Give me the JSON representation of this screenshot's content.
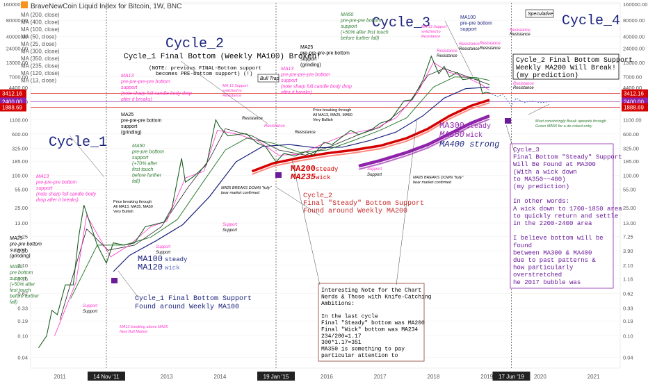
{
  "header": {
    "title": "BraveNewCoin Liquid Index for Bitcoin, 1W, BNC",
    "ma_list": [
      "MA (200, close)",
      "MA (400, close)",
      "MA (100, close)",
      "MA (50, close)",
      "MA (25, close)",
      "MA (300, close)",
      "MA (350, close)",
      "MA (235, close)",
      "MA (120, close)",
      "MA (13, close)"
    ]
  },
  "colors": {
    "ma13": "#ff33cc",
    "ma25": "#222222",
    "ma50": "#2e7d32",
    "ma100": "#1a237e",
    "ma200": "#d50000",
    "ma300": "#8e24aa",
    "price": "#1b5e20",
    "cycle_text": "#1a237e",
    "prediction_box": "#8e24aa",
    "note_box": "#8d3b2f"
  },
  "chart_data": {
    "type": "line",
    "title": "",
    "yscale": "log",
    "ylim": [
      0.025,
      170000
    ],
    "x_ticks": [
      "2011",
      "14 Nov '11",
      "2013",
      "2014",
      "19 Jan '15",
      "2016",
      "2017",
      "2018",
      "2019",
      "17 Jun '19",
      "2020",
      "2021"
    ],
    "y_ticks": [
      "160000.00",
      "80000.00",
      "40000.00",
      "24000.00",
      "13000.00",
      "7000.00",
      "4400.00",
      "2400.00",
      "1100.00",
      "600.00",
      "325.00",
      "185.00",
      "100.00",
      "55.00",
      "25.00",
      "13.00",
      "7.25",
      "3.90",
      "2.10",
      "1.16",
      "0.62",
      "0.33",
      "0.19",
      "0.10",
      "0.04"
    ],
    "price_badges": [
      {
        "value": "3412.16",
        "color": "#d50000"
      },
      {
        "value": "2400.00",
        "color": "#8e24aa"
      },
      {
        "value": "1888.69",
        "color": "#d50000"
      }
    ],
    "series_price": [
      [
        2010.6,
        0.06
      ],
      [
        2010.75,
        0.1
      ],
      [
        2010.85,
        0.3
      ],
      [
        2010.95,
        0.25
      ],
      [
        2011.1,
        0.9
      ],
      [
        2011.25,
        0.9
      ],
      [
        2011.35,
        7
      ],
      [
        2011.45,
        28
      ],
      [
        2011.55,
        14
      ],
      [
        2011.7,
        5
      ],
      [
        2011.87,
        2.3
      ],
      [
        2012.0,
        5.5
      ],
      [
        2012.2,
        5
      ],
      [
        2012.4,
        5.5
      ],
      [
        2012.6,
        11
      ],
      [
        2012.75,
        12
      ],
      [
        2012.95,
        13.5
      ],
      [
        2013.1,
        25
      ],
      [
        2013.28,
        210
      ],
      [
        2013.35,
        75
      ],
      [
        2013.5,
        95
      ],
      [
        2013.75,
        160
      ],
      [
        2013.92,
        1100
      ],
      [
        2014.0,
        800
      ],
      [
        2014.15,
        550
      ],
      [
        2014.4,
        600
      ],
      [
        2014.5,
        600
      ],
      [
        2014.7,
        400
      ],
      [
        2014.85,
        350
      ],
      [
        2015.05,
        180
      ],
      [
        2015.2,
        260
      ],
      [
        2015.4,
        230
      ],
      [
        2015.6,
        280
      ],
      [
        2015.75,
        240
      ],
      [
        2015.95,
        420
      ],
      [
        2016.1,
        380
      ],
      [
        2016.45,
        700
      ],
      [
        2016.6,
        580
      ],
      [
        2016.85,
        730
      ],
      [
        2017.0,
        950
      ],
      [
        2017.2,
        1100
      ],
      [
        2017.45,
        2500
      ],
      [
        2017.6,
        2600
      ],
      [
        2017.8,
        6000
      ],
      [
        2017.96,
        17000
      ],
      [
        2018.1,
        8000
      ],
      [
        2018.2,
        11000
      ],
      [
        2018.3,
        7000
      ],
      [
        2018.45,
        8500
      ],
      [
        2018.55,
        6200
      ],
      [
        2018.7,
        6500
      ],
      [
        2018.85,
        6300
      ],
      [
        2018.92,
        3400
      ],
      [
        2018.98,
        3600
      ],
      [
        2019.05,
        3500
      ]
    ],
    "series_prediction": [
      [
        2019.05,
        3500
      ],
      [
        2019.2,
        3000
      ],
      [
        2019.3,
        3300
      ],
      [
        2019.38,
        2600
      ],
      [
        2019.46,
        2000
      ],
      [
        2019.55,
        2800
      ],
      [
        2019.7,
        2300
      ],
      [
        2019.85,
        2500
      ],
      [
        2020.0,
        2300
      ],
      [
        2020.2,
        2400
      ]
    ],
    "series_ma13": [
      [
        2010.9,
        0.1
      ],
      [
        2011.3,
        1
      ],
      [
        2011.5,
        18
      ],
      [
        2011.7,
        8
      ],
      [
        2011.95,
        3
      ],
      [
        2012.3,
        5
      ],
      [
        2012.7,
        11
      ],
      [
        2013.0,
        14
      ],
      [
        2013.35,
        90
      ],
      [
        2013.7,
        120
      ],
      [
        2013.95,
        700
      ],
      [
        2014.3,
        600
      ],
      [
        2014.7,
        450
      ],
      [
        2015.1,
        240
      ],
      [
        2015.5,
        250
      ],
      [
        2015.9,
        380
      ],
      [
        2016.4,
        600
      ],
      [
        2016.9,
        750
      ],
      [
        2017.3,
        1200
      ],
      [
        2017.7,
        3500
      ],
      [
        2018.0,
        13000
      ],
      [
        2018.3,
        8500
      ],
      [
        2018.6,
        7000
      ],
      [
        2018.9,
        5000
      ],
      [
        2019.05,
        3900
      ]
    ],
    "series_ma25": [
      [
        2011.0,
        0.2
      ],
      [
        2011.5,
        10
      ],
      [
        2011.9,
        4
      ],
      [
        2012.4,
        5
      ],
      [
        2012.9,
        11
      ],
      [
        2013.4,
        60
      ],
      [
        2013.8,
        200
      ],
      [
        2014.1,
        750
      ],
      [
        2014.6,
        550
      ],
      [
        2015.1,
        300
      ],
      [
        2015.6,
        240
      ],
      [
        2016.1,
        360
      ],
      [
        2016.6,
        580
      ],
      [
        2017.0,
        800
      ],
      [
        2017.5,
        2000
      ],
      [
        2017.9,
        7500
      ],
      [
        2018.2,
        10000
      ],
      [
        2018.6,
        7300
      ],
      [
        2019.05,
        5000
      ]
    ],
    "series_ma50": [
      [
        2011.2,
        0.5
      ],
      [
        2011.7,
        5
      ],
      [
        2012.2,
        5
      ],
      [
        2012.7,
        7
      ],
      [
        2013.2,
        15
      ],
      [
        2013.7,
        80
      ],
      [
        2014.1,
        300
      ],
      [
        2014.5,
        500
      ],
      [
        2015.0,
        400
      ],
      [
        2015.5,
        270
      ],
      [
        2016.0,
        300
      ],
      [
        2016.5,
        450
      ],
      [
        2017.0,
        700
      ],
      [
        2017.5,
        1200
      ],
      [
        2018.0,
        4500
      ],
      [
        2018.4,
        7000
      ],
      [
        2018.8,
        6800
      ],
      [
        2019.05,
        6000
      ]
    ],
    "series_ma100": [
      [
        2012.0,
        1.6
      ],
      [
        2012.3,
        3.2
      ],
      [
        2012.8,
        6
      ],
      [
        2013.3,
        12
      ],
      [
        2013.8,
        40
      ],
      [
        2014.3,
        180
      ],
      [
        2014.8,
        350
      ],
      [
        2015.3,
        380
      ],
      [
        2015.8,
        330
      ],
      [
        2016.3,
        340
      ],
      [
        2016.8,
        450
      ],
      [
        2017.3,
        650
      ],
      [
        2017.8,
        1300
      ],
      [
        2018.2,
        2800
      ],
      [
        2018.6,
        4200
      ],
      [
        2019.05,
        4500
      ]
    ],
    "series_ma200": [
      [
        2014.6,
        120
      ],
      [
        2015.0,
        170
      ],
      [
        2015.5,
        215
      ],
      [
        2016.0,
        260
      ],
      [
        2016.5,
        300
      ],
      [
        2017.0,
        360
      ],
      [
        2017.5,
        500
      ],
      [
        2017.9,
        750
      ],
      [
        2018.3,
        1300
      ],
      [
        2018.7,
        2000
      ],
      [
        2019.05,
        2600
      ]
    ],
    "series_ma300": [
      [
        2016.6,
        150
      ],
      [
        2017.0,
        190
      ],
      [
        2017.5,
        270
      ],
      [
        2017.9,
        380
      ],
      [
        2018.3,
        600
      ],
      [
        2018.7,
        950
      ],
      [
        2019.05,
        1300
      ]
    ]
  },
  "annotations": {
    "cycle1": "Cycle_1",
    "cycle2": "Cycle_2",
    "cycle3": "Cycle_3",
    "cycle4": "Cycle_4",
    "cycle1_broken": "Cycle_1 Final Bottom (Weekly MA100) Broken!",
    "note_prev": "(NOTE: previous FINAL-Bottom support",
    "note_prev2": "becomes PRE-bottom support) (!)",
    "bull_trap": "Bull Trap",
    "speculative": "Speculative",
    "c2_prediction": [
      "Cycle_2 Final Bottom Support",
      "Weekly MA200 Will Break!",
      "(my prediction)"
    ],
    "c1_bottom": [
      "Cycle_1 Final Bottom Support",
      "Found around Weekly MA100"
    ],
    "c2_bottom": [
      "Cycle_2",
      "Final \"Steady\" Bottom Support",
      "Found around Weekly MA200"
    ],
    "ma100_steady": "MA100",
    "ma100_steady_w": "steady",
    "ma120_wick": "MA120",
    "ma120_wick_w": "wick",
    "ma200_steady": "MA200",
    "ma200_steady_w": "steady",
    "ma235_wick": "MA235",
    "ma235_wick_w": "wick",
    "ma300_steady": "MA300",
    "ma300_steady_w": "steady",
    "ma350_wick": "MA350",
    "ma350_wick_w": "wick",
    "ma400_strong": "MA400 strong",
    "c3_box": [
      "Cycle_3",
      "Final Bottom \"Steady\" Support",
      "Will Be Found at MA300",
      "(With a wick down",
      "to MA350~~400)",
      "(my prediction)",
      "",
      "In other words:",
      "A wick down to 1700-1850 area",
      "to quickly return and settle",
      "in the 2200-2400 area",
      "",
      "I believe bottom will be",
      "found",
      "between MA300 & MA400",
      "due to past patterns &",
      "how particularly",
      "overstretched",
      "he 2017 bubble was"
    ],
    "note_box": [
      "Interesting Note for the Chart",
      "Nerds & Those with Knife-Catching",
      "Ambitions:",
      "",
      "In the last cycle",
      "Final \"Steady\" bottom was MA200",
      "Final \"Wick\" bottom was MA234",
      "234/200=1.17",
      "300*1.17=351",
      "MA350 is something to pay",
      "particular attention to"
    ],
    "green_break": [
      "Must convincingly Break upwards through",
      "Green MA50 for a de-risked entry"
    ],
    "ma13_pre_c1": [
      "MA13",
      "pre-pre-pre bottom",
      "support",
      "(note sharp full candle body",
      "drop after it breaks)"
    ],
    "ma25_pre_c1": [
      "MA25",
      "pre-pre bottom",
      "support",
      "(grinding)"
    ],
    "ma50_pre_c1": [
      "MA50",
      "pre bottom",
      "support",
      "(+50% after",
      "first touch",
      "before further",
      "fall)"
    ],
    "ma13_pre_c2": [
      "MA13",
      "pre-pre-pre-pre bottom",
      "support",
      "(note sharp full candle body drop",
      "after it breaks)"
    ],
    "ma25_pre_c2": [
      "MA25",
      "pre-pre-pre bottom",
      "support",
      "(grinding)"
    ],
    "ma50_pre_c2": [
      "MA50",
      "pre-pre bottom",
      "support",
      "(+70% after",
      "first touch",
      "before further",
      "fall)"
    ],
    "ma13_pre_c3": [
      "MA13",
      "pre-pre-pre-pre bottom",
      "support",
      "(note sharp full candle body drop",
      "after it breaks)"
    ],
    "ma25_pre_c3": [
      "MA25",
      "pre-pre-pre-pre bottom",
      "support",
      "(grinding)"
    ],
    "ma50_pre_c3": [
      "MA50",
      "pre-pre-pre bottom",
      "support",
      "(+50% after first touch",
      "before further fall)"
    ],
    "ma100_pre_c3": [
      "MA100",
      "pre-pre bottom",
      "support"
    ],
    "ma13_switch_c2": [
      "MA 13 Support",
      "switched to",
      "Resistance"
    ],
    "ma13_switch_c3": [
      "MA 13 Support",
      "switched to",
      "Resistance"
    ],
    "price_break_c1": [
      "Price breaking through",
      "All MA13, MA35, MA50",
      "Very Bullish"
    ],
    "price_break_c2": [
      "Price breaking through",
      "All MA13, MA25, MA50",
      "Very Bullish"
    ],
    "ma25_break_c2": [
      "MA25 BREAKS DOWN \"fully\"",
      "bear market confirmed"
    ],
    "ma25_break_c3": [
      "MA25 BREAKS DOWN \"fully\"",
      "bear market confirmed"
    ],
    "ma13_bull": [
      "MA13 breaking above MA25",
      "New Bull Market"
    ],
    "support": "Support",
    "resistance": "Resistance"
  }
}
